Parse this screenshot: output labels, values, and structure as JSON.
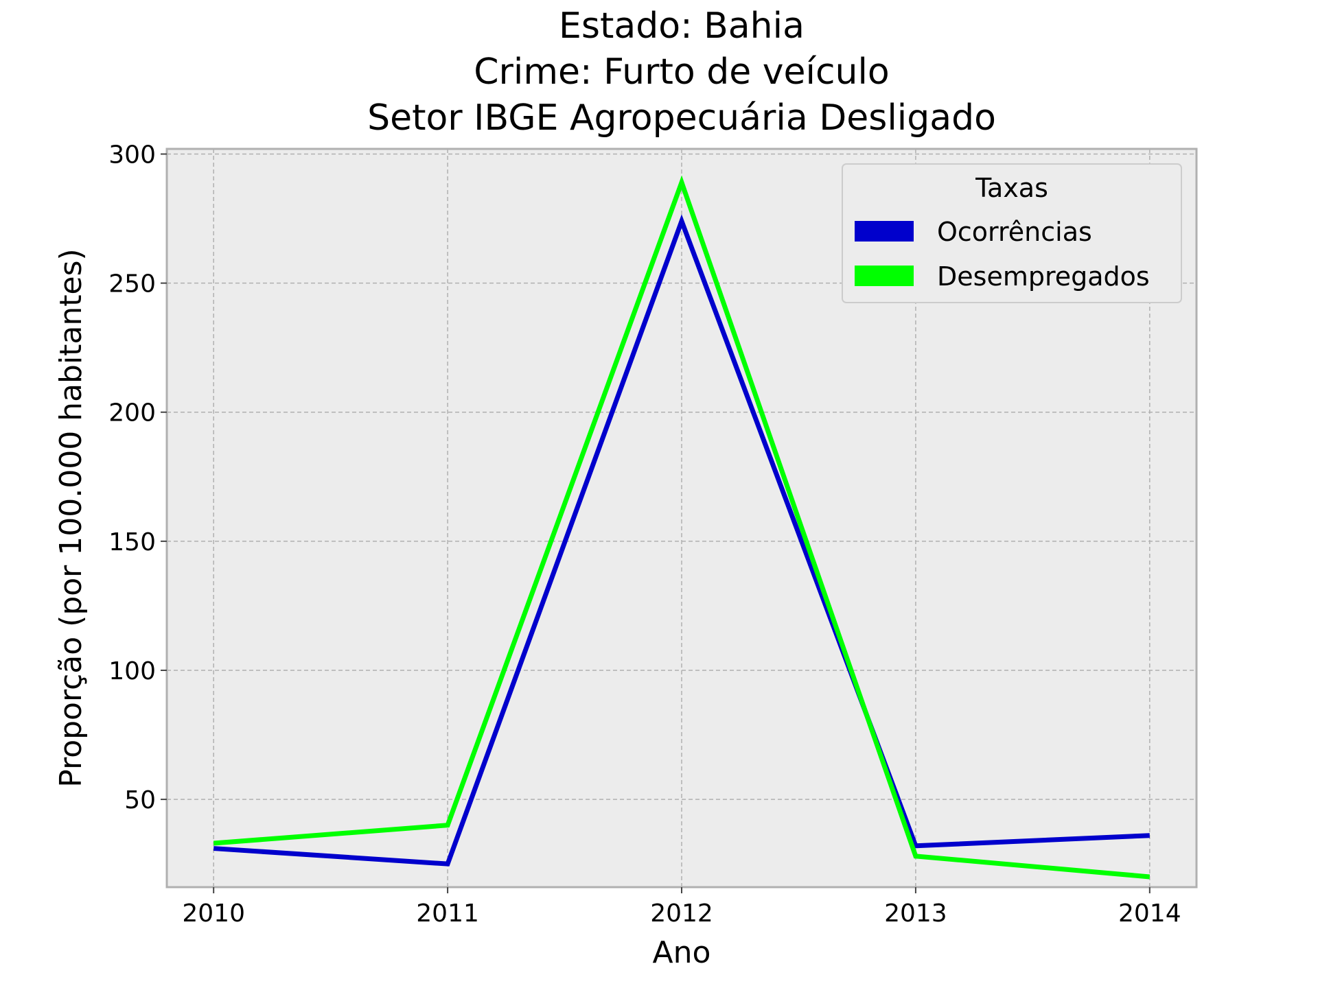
{
  "title": {
    "line1": "Estado: Bahia",
    "line2": "Crime: Furto de veículo",
    "line3": "Setor IBGE  Agropecuária   Desligado"
  },
  "chart_data": {
    "type": "line",
    "xlabel": "Ano",
    "ylabel": "Proporção (por 100.000 habitantes)",
    "x": [
      2010,
      2011,
      2012,
      2013,
      2014
    ],
    "x_tick_labels": [
      "2010",
      "2011",
      "2012",
      "2013",
      "2014"
    ],
    "xlim": [
      2009.8,
      2014.2
    ],
    "ylim": [
      16,
      302
    ],
    "y_ticks": [
      50,
      100,
      150,
      200,
      250,
      300
    ],
    "y_tick_labels": [
      "50",
      "100",
      "150",
      "200",
      "250",
      "300"
    ],
    "grid": true,
    "legend": {
      "title": "Taxas",
      "placement": "top-right"
    },
    "series": [
      {
        "name": "Ocorrências",
        "color": "#0000cc",
        "values": [
          31,
          25,
          274,
          32,
          36
        ]
      },
      {
        "name": "Desempregados",
        "color": "#00ff00",
        "values": [
          33,
          40,
          289,
          28,
          20
        ]
      }
    ],
    "background_color": "#ececec"
  }
}
